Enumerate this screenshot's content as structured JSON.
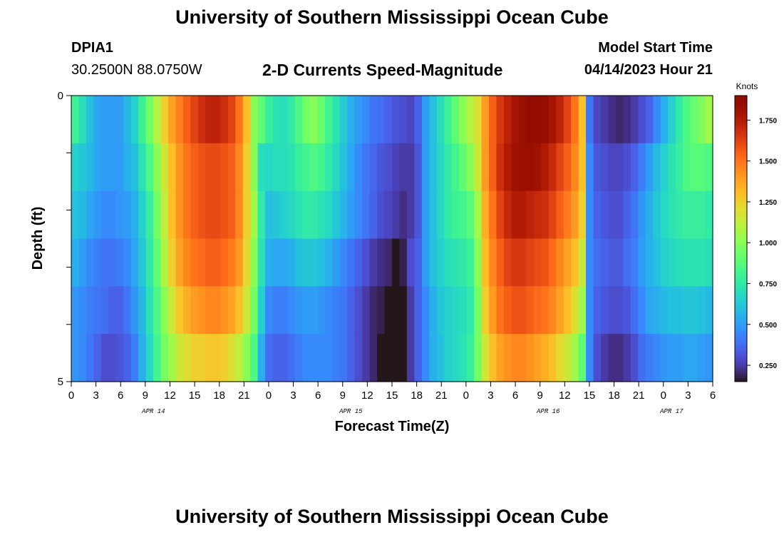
{
  "header": {
    "title": "University of Southern Mississippi Ocean Cube",
    "station": "DPIA1",
    "coords": "30.2500N  88.0750W",
    "plot_title": "2-D Currents Speed-Magnitude",
    "start_label": "Model Start Time",
    "start_time": "04/14/2023 Hour 21"
  },
  "footer": {
    "title": "University of Southern Mississippi Ocean Cube"
  },
  "chart_data": {
    "type": "heatmap",
    "title": "2-D Currents Speed-Magnitude",
    "xlabel": "Forecast Time(Z)",
    "ylabel": "Depth (ft)",
    "ylim": [
      0,
      5
    ],
    "y_tick_labels": [
      "0",
      "5"
    ],
    "x_hours_start": 0,
    "x_hours_end": 78,
    "x_tick_labels": [
      "0",
      "3",
      "6",
      "9",
      "12",
      "15",
      "18",
      "21",
      "0",
      "3",
      "6",
      "9",
      "12",
      "15",
      "18",
      "21",
      "0",
      "3",
      "6",
      "9",
      "12",
      "15",
      "18",
      "21",
      "0",
      "3",
      "6"
    ],
    "day_labels": [
      {
        "label": "APR 14",
        "hour": 10
      },
      {
        "label": "APR 15",
        "hour": 34
      },
      {
        "label": "APR 16",
        "hour": 58
      },
      {
        "label": "APR 17",
        "hour": 73
      }
    ],
    "depths_ft": [
      0.25,
      1.0,
      2.0,
      3.0,
      4.0,
      4.75
    ],
    "speed_knots": [
      [
        0.8,
        0.7,
        0.6,
        0.52,
        0.5,
        0.5,
        0.5,
        0.58,
        0.65,
        0.8,
        0.95,
        1.1,
        1.25,
        1.38,
        1.47,
        1.55,
        1.62,
        1.68,
        1.72,
        1.72,
        1.68,
        1.62,
        1.5,
        1.3,
        1.0,
        0.9,
        0.78,
        0.72,
        0.7,
        0.75,
        0.85,
        0.95,
        1.0,
        0.92,
        0.82,
        0.72,
        0.63,
        0.55,
        0.5,
        0.45,
        0.4,
        0.38,
        0.35,
        0.32,
        0.3,
        0.28,
        0.35,
        0.5,
        0.6,
        0.7,
        0.8,
        0.9,
        1.0,
        1.1,
        1.2,
        1.4,
        1.55,
        1.65,
        1.72,
        1.78,
        1.82,
        1.85,
        1.85,
        1.83,
        1.78,
        1.72,
        1.62,
        1.5,
        1.3,
        0.4,
        0.28,
        0.25,
        0.22,
        0.2,
        0.22,
        0.25,
        0.3,
        0.35,
        0.45,
        0.55,
        0.65,
        0.75,
        0.85,
        0.92,
        0.98,
        1.05
      ],
      [
        0.65,
        0.62,
        0.58,
        0.52,
        0.5,
        0.5,
        0.5,
        0.55,
        0.6,
        0.72,
        0.85,
        1.0,
        1.15,
        1.3,
        1.42,
        1.5,
        1.55,
        1.58,
        1.6,
        1.6,
        1.58,
        1.55,
        1.45,
        1.25,
        1.0,
        0.7,
        0.68,
        0.7,
        0.7,
        0.72,
        0.78,
        0.82,
        0.85,
        0.82,
        0.75,
        0.68,
        0.6,
        0.52,
        0.45,
        0.4,
        0.36,
        0.32,
        0.3,
        0.27,
        0.25,
        0.25,
        0.32,
        0.5,
        0.6,
        0.68,
        0.75,
        0.82,
        0.9,
        1.0,
        1.15,
        1.4,
        1.55,
        1.68,
        1.75,
        1.8,
        1.82,
        1.82,
        1.8,
        1.75,
        1.7,
        1.62,
        1.55,
        1.45,
        1.3,
        0.45,
        0.32,
        0.3,
        0.28,
        0.28,
        0.3,
        0.35,
        0.42,
        0.5,
        0.58,
        0.65,
        0.72,
        0.78,
        0.85,
        0.88,
        0.88,
        0.85
      ],
      [
        0.6,
        0.58,
        0.52,
        0.48,
        0.45,
        0.45,
        0.48,
        0.5,
        0.55,
        0.65,
        0.78,
        0.95,
        1.12,
        1.3,
        1.42,
        1.5,
        1.55,
        1.58,
        1.6,
        1.6,
        1.58,
        1.55,
        1.45,
        1.25,
        1.05,
        0.75,
        0.6,
        0.62,
        0.65,
        0.68,
        0.72,
        0.75,
        0.75,
        0.72,
        0.68,
        0.62,
        0.56,
        0.5,
        0.45,
        0.4,
        0.35,
        0.3,
        0.28,
        0.25,
        0.22,
        0.25,
        0.32,
        0.5,
        0.6,
        0.68,
        0.75,
        0.8,
        0.82,
        0.88,
        1.05,
        1.35,
        1.5,
        1.62,
        1.7,
        1.75,
        1.75,
        1.72,
        1.7,
        1.68,
        1.62,
        1.55,
        1.48,
        1.4,
        1.25,
        0.45,
        0.35,
        0.32,
        0.3,
        0.3,
        0.35,
        0.4,
        0.48,
        0.55,
        0.62,
        0.68,
        0.72,
        0.75,
        0.78,
        0.78,
        0.78,
        0.75
      ],
      [
        0.55,
        0.5,
        0.45,
        0.42,
        0.4,
        0.4,
        0.42,
        0.45,
        0.52,
        0.62,
        0.75,
        0.9,
        1.08,
        1.25,
        1.38,
        1.45,
        1.5,
        1.52,
        1.55,
        1.55,
        1.52,
        1.48,
        1.4,
        1.22,
        1.0,
        0.72,
        0.55,
        0.52,
        0.52,
        0.55,
        0.6,
        0.62,
        0.62,
        0.6,
        0.55,
        0.5,
        0.45,
        0.4,
        0.35,
        0.3,
        0.25,
        0.22,
        0.2,
        0.15,
        0.18,
        0.3,
        0.35,
        0.5,
        0.6,
        0.65,
        0.7,
        0.72,
        0.75,
        0.8,
        1.0,
        1.3,
        1.45,
        1.55,
        1.62,
        1.65,
        1.65,
        1.62,
        1.6,
        1.58,
        1.52,
        1.45,
        1.38,
        1.3,
        1.15,
        0.45,
        0.38,
        0.35,
        0.33,
        0.33,
        0.38,
        0.42,
        0.5,
        0.55,
        0.6,
        0.65,
        0.68,
        0.7,
        0.72,
        0.72,
        0.72,
        0.7
      ],
      [
        0.48,
        0.45,
        0.42,
        0.4,
        0.38,
        0.35,
        0.35,
        0.4,
        0.48,
        0.58,
        0.72,
        0.85,
        1.0,
        1.15,
        1.28,
        1.35,
        1.4,
        1.42,
        1.45,
        1.45,
        1.42,
        1.38,
        1.3,
        1.15,
        0.95,
        0.65,
        0.45,
        0.42,
        0.42,
        0.45,
        0.48,
        0.5,
        0.5,
        0.48,
        0.45,
        0.42,
        0.4,
        0.35,
        0.3,
        0.25,
        0.2,
        0.18,
        0.15,
        0.12,
        0.15,
        0.25,
        0.35,
        0.45,
        0.55,
        0.62,
        0.65,
        0.68,
        0.7,
        0.75,
        0.95,
        1.25,
        1.4,
        1.5,
        1.55,
        1.58,
        1.58,
        1.55,
        1.52,
        1.5,
        1.45,
        1.38,
        1.3,
        1.2,
        1.05,
        0.45,
        0.35,
        0.32,
        0.3,
        0.3,
        0.32,
        0.38,
        0.45,
        0.52,
        0.55,
        0.58,
        0.6,
        0.6,
        0.62,
        0.62,
        0.6,
        0.58
      ],
      [
        0.48,
        0.45,
        0.4,
        0.35,
        0.3,
        0.3,
        0.32,
        0.35,
        0.42,
        0.55,
        0.68,
        0.82,
        0.95,
        1.05,
        1.15,
        1.2,
        1.25,
        1.25,
        1.28,
        1.28,
        1.25,
        1.2,
        1.12,
        1.0,
        0.85,
        0.55,
        0.38,
        0.35,
        0.35,
        0.38,
        0.42,
        0.45,
        0.45,
        0.45,
        0.45,
        0.42,
        0.4,
        0.35,
        0.3,
        0.25,
        0.2,
        0.15,
        0.1,
        0.08,
        0.12,
        0.25,
        0.35,
        0.45,
        0.55,
        0.6,
        0.65,
        0.68,
        0.72,
        0.78,
        0.95,
        1.15,
        1.3,
        1.38,
        1.42,
        1.45,
        1.45,
        1.42,
        1.38,
        1.35,
        1.3,
        1.22,
        1.15,
        1.05,
        0.9,
        0.45,
        0.3,
        0.25,
        0.22,
        0.22,
        0.25,
        0.3,
        0.38,
        0.42,
        0.45,
        0.48,
        0.5,
        0.5,
        0.52,
        0.52,
        0.5,
        0.48
      ]
    ],
    "colorbar": {
      "label": "Knots",
      "min": 0.15,
      "max": 1.9,
      "ticks": [
        0.25,
        0.5,
        0.75,
        1.0,
        1.25,
        1.5,
        1.75
      ],
      "tick_labels": [
        "0.250",
        "0.500",
        "0.750",
        "1.000",
        "1.250",
        "1.500",
        "1.750"
      ]
    }
  }
}
